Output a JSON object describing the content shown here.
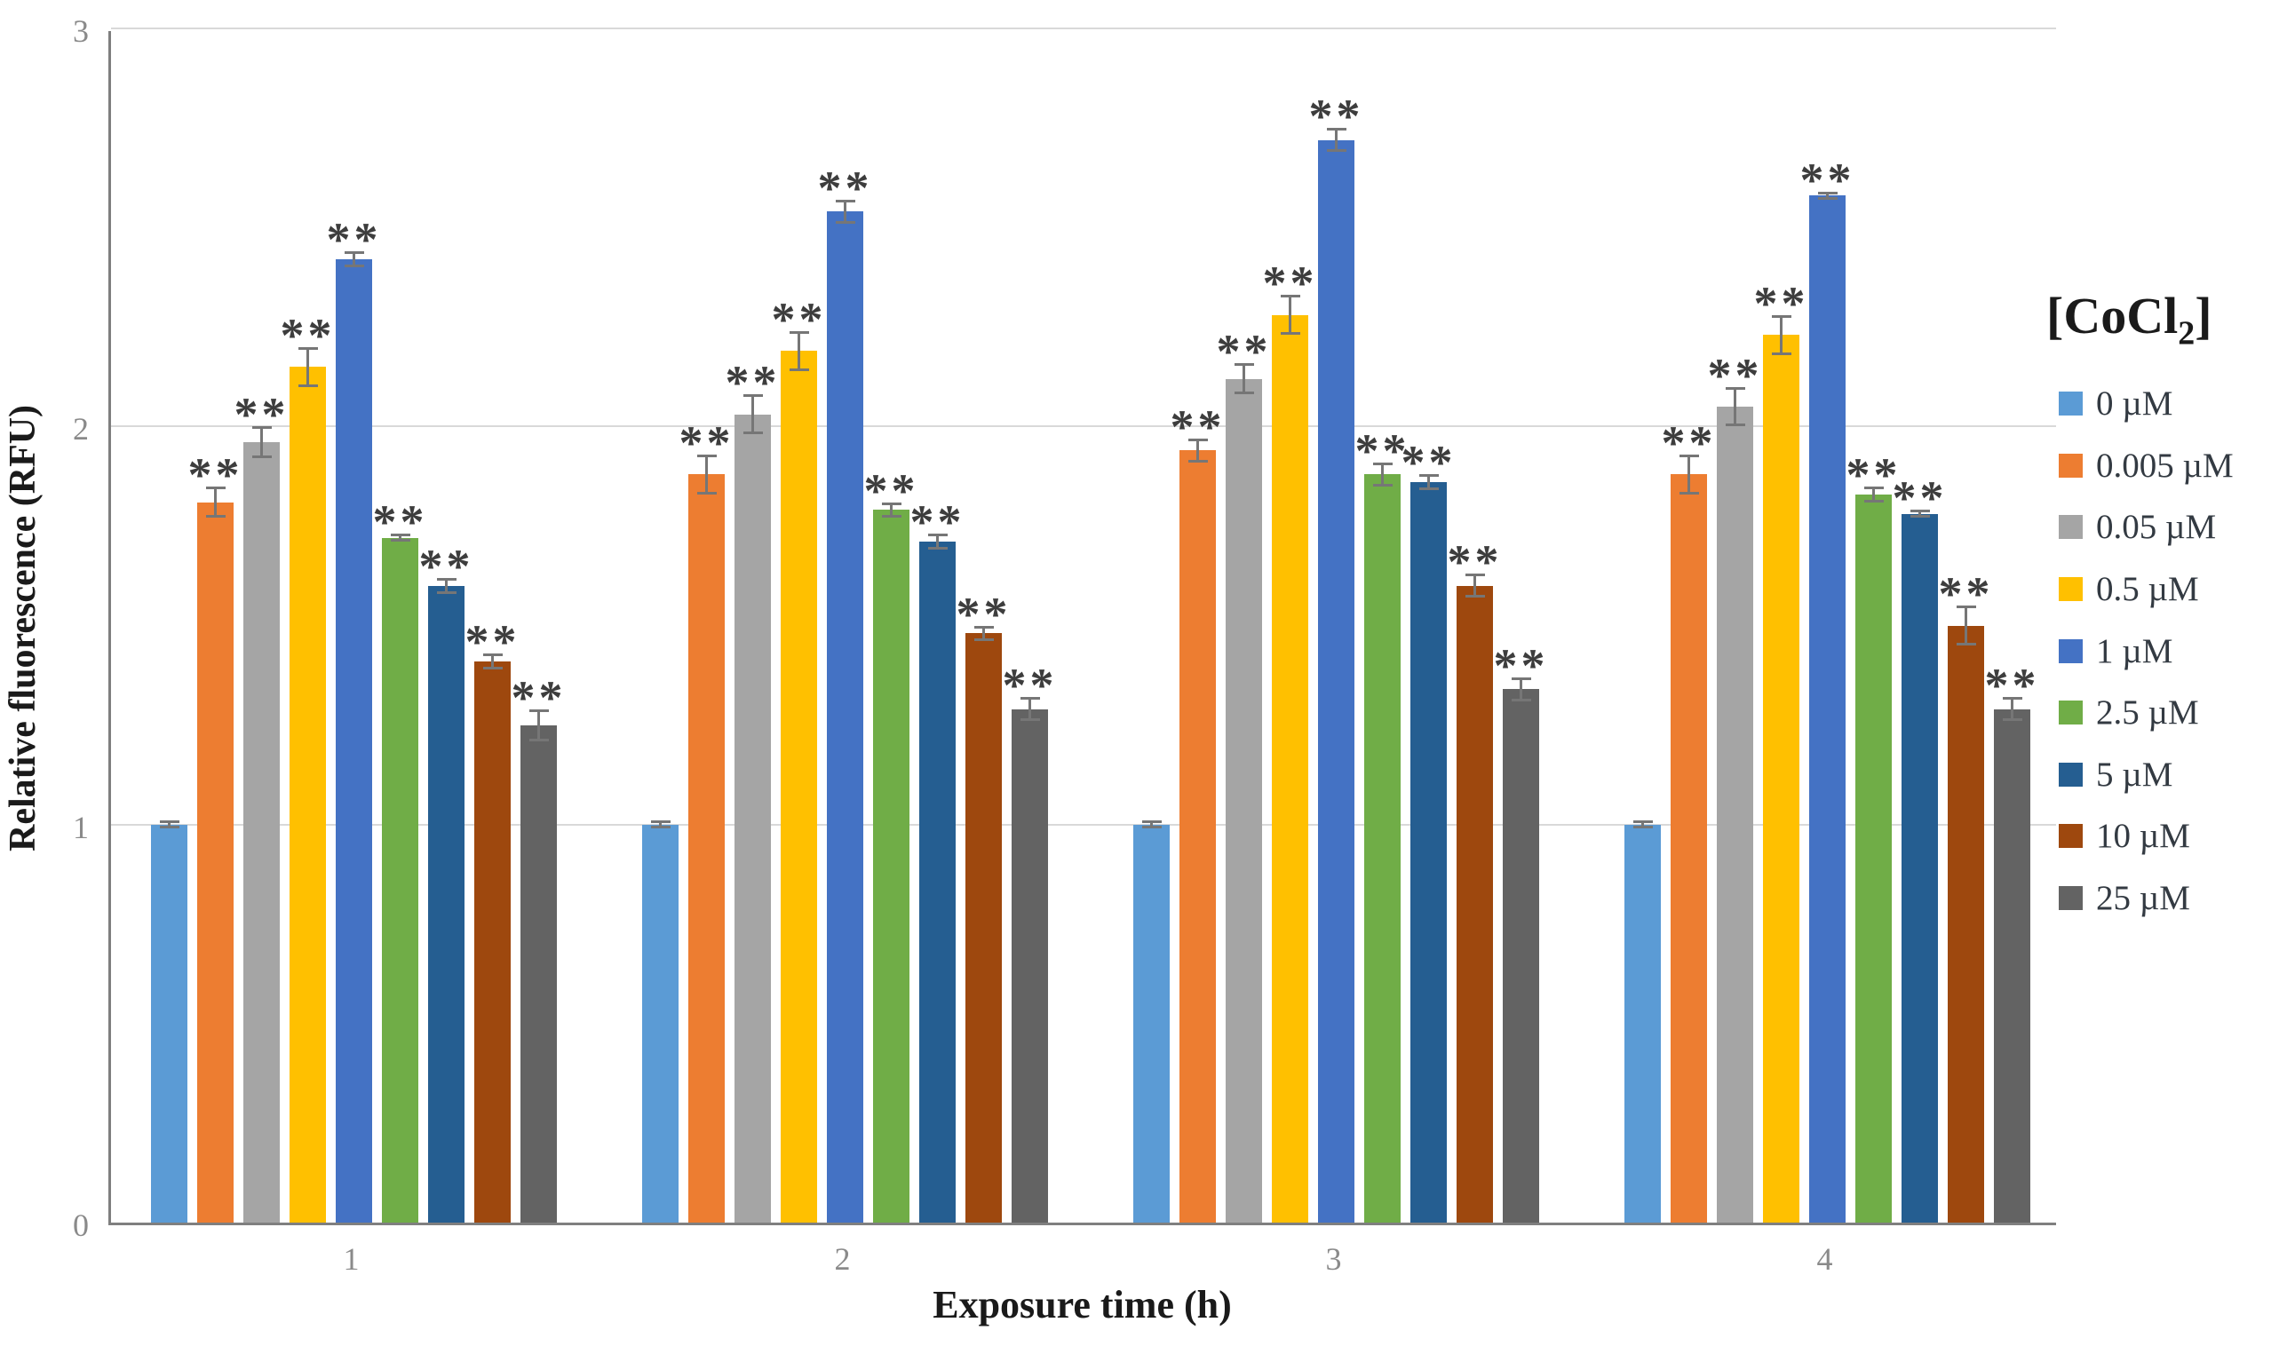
{
  "chart": {
    "y_axis": {
      "title": "Relative fluorescence (RFU)",
      "ticks": [
        "0",
        "1",
        "2",
        "3"
      ]
    },
    "x_axis": {
      "title": "Exposure time (h)",
      "ticks": [
        "1",
        "2",
        "3",
        "4"
      ]
    },
    "legend": {
      "title_pre": "[CoCl",
      "title_sub": "2",
      "title_post": "]"
    },
    "significance_label": "**"
  },
  "chart_data": {
    "type": "bar",
    "title": "",
    "categories": [
      "1",
      "2",
      "3",
      "4"
    ],
    "xlabel": "Exposure time (h)",
    "ylabel": "Relative fluorescence (RFU)",
    "ylim": [
      0,
      3
    ],
    "grid": "horizontal",
    "legend_position": "right",
    "legend_title": "[CoCl2]",
    "error_bars": true,
    "significance_note": "** shown above every CoCl2-treated bar (all except 0 uM control)",
    "series": [
      {
        "name": "0 µM",
        "color": "#5B9BD5",
        "values": [
          1.0,
          1.0,
          1.0,
          1.0
        ],
        "errors": [
          0.01,
          0.01,
          0.01,
          0.01
        ],
        "significant": false
      },
      {
        "name": "0.005 µM",
        "color": "#ED7D31",
        "values": [
          1.81,
          1.88,
          1.94,
          1.88
        ],
        "errors": [
          0.04,
          0.05,
          0.03,
          0.05
        ],
        "significant": true
      },
      {
        "name": "0.05 µM",
        "color": "#A5A5A5",
        "values": [
          1.96,
          2.03,
          2.12,
          2.05
        ],
        "errors": [
          0.04,
          0.05,
          0.04,
          0.05
        ],
        "significant": true
      },
      {
        "name": "0.5 µM",
        "color": "#FFC000",
        "values": [
          2.15,
          2.19,
          2.28,
          2.23
        ],
        "errors": [
          0.05,
          0.05,
          0.05,
          0.05
        ],
        "significant": true
      },
      {
        "name": "1 µM",
        "color": "#4472C4",
        "values": [
          2.42,
          2.54,
          2.72,
          2.58
        ],
        "errors": [
          0.02,
          0.03,
          0.03,
          0.01
        ],
        "significant": true
      },
      {
        "name": "2.5 µM",
        "color": "#70AD47",
        "values": [
          1.72,
          1.79,
          1.88,
          1.83
        ],
        "errors": [
          0.01,
          0.02,
          0.03,
          0.02
        ],
        "significant": true
      },
      {
        "name": "5 µM",
        "color": "#255E91",
        "values": [
          1.6,
          1.71,
          1.86,
          1.78
        ],
        "errors": [
          0.02,
          0.02,
          0.02,
          0.01
        ],
        "significant": true
      },
      {
        "name": "10 µM",
        "color": "#9E480E",
        "values": [
          1.41,
          1.48,
          1.6,
          1.5
        ],
        "errors": [
          0.02,
          0.02,
          0.03,
          0.05
        ],
        "significant": true
      },
      {
        "name": "25 µM",
        "color": "#636363",
        "values": [
          1.25,
          1.29,
          1.34,
          1.29
        ],
        "errors": [
          0.04,
          0.03,
          0.03,
          0.03
        ],
        "significant": true
      }
    ]
  }
}
